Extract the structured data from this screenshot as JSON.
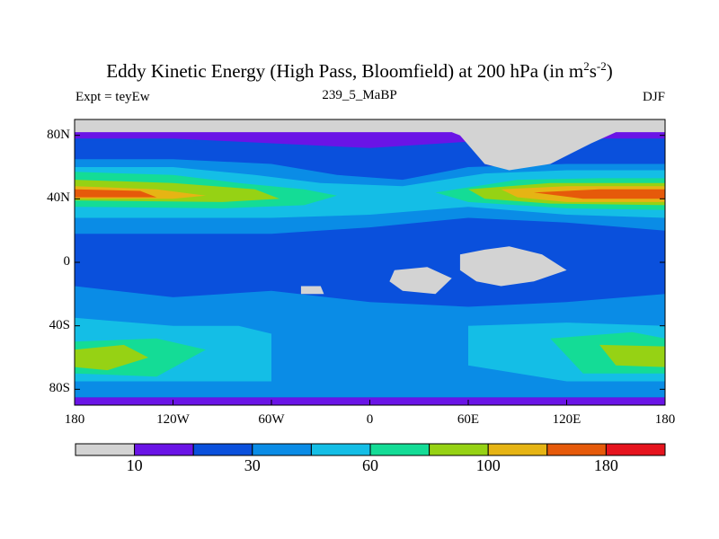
{
  "title_main": "Eddy Kinetic Energy (High Pass, Bloomfield) at 200 hPa (in m",
  "title_sup1": "2",
  "title_mid": "s",
  "title_sup2": "-2",
  "title_end": ")",
  "left_label": "Expt = teyEw",
  "center_label": "239_5_MaBP",
  "right_label": "DJF",
  "chart_data": {
    "type": "heatmap",
    "variable": "Eddy Kinetic Energy (High Pass, Bloomfield)",
    "level": "200 hPa",
    "units": "m^2 s^-2",
    "season": "DJF",
    "x_range": [
      -180,
      180
    ],
    "y_range": [
      -90,
      90
    ],
    "x_ticks": [
      {
        "value": -180,
        "label": "180"
      },
      {
        "value": -120,
        "label": "120W"
      },
      {
        "value": -60,
        "label": "60W"
      },
      {
        "value": 0,
        "label": "0"
      },
      {
        "value": 60,
        "label": "60E"
      },
      {
        "value": 120,
        "label": "120E"
      },
      {
        "value": 180,
        "label": "180"
      }
    ],
    "y_ticks": [
      {
        "value": 80,
        "label": "80N"
      },
      {
        "value": 40,
        "label": "40N"
      },
      {
        "value": 0,
        "label": "0"
      },
      {
        "value": -40,
        "label": "40S"
      },
      {
        "value": -80,
        "label": "80S"
      }
    ],
    "colorbar": {
      "colors": [
        "#d3d3d3",
        "#6a14e6",
        "#0a50dc",
        "#0a8ce6",
        "#14bee6",
        "#14dc96",
        "#96d214",
        "#e6b414",
        "#e65a0a",
        "#e6141e"
      ],
      "labels": [
        {
          "boundary": 1,
          "label": "10"
        },
        {
          "boundary": 3,
          "label": "30"
        },
        {
          "boundary": 5,
          "label": "60"
        },
        {
          "boundary": 7,
          "label": "100"
        },
        {
          "boundary": 9,
          "label": "180"
        }
      ]
    },
    "regions": [
      {
        "level": 2,
        "points": [
          [
            -180,
            78
          ],
          [
            -120,
            78
          ],
          [
            -60,
            75
          ],
          [
            0,
            72
          ],
          [
            60,
            76
          ],
          [
            120,
            78
          ],
          [
            180,
            78
          ],
          [
            180,
            -85
          ],
          [
            -180,
            -85
          ]
        ]
      },
      {
        "level": 3,
        "points": [
          [
            -180,
            65
          ],
          [
            -120,
            65
          ],
          [
            -60,
            62
          ],
          [
            -20,
            55
          ],
          [
            20,
            52
          ],
          [
            60,
            60
          ],
          [
            120,
            62
          ],
          [
            180,
            62
          ],
          [
            180,
            20
          ],
          [
            120,
            25
          ],
          [
            60,
            28
          ],
          [
            0,
            22
          ],
          [
            -60,
            18
          ],
          [
            -120,
            18
          ],
          [
            -180,
            18
          ]
        ]
      },
      {
        "level": 3,
        "points": [
          [
            -180,
            -15
          ],
          [
            -120,
            -22
          ],
          [
            -60,
            -18
          ],
          [
            0,
            -25
          ],
          [
            60,
            -28
          ],
          [
            120,
            -25
          ],
          [
            180,
            -20
          ],
          [
            180,
            -85
          ],
          [
            -180,
            -85
          ]
        ]
      },
      {
        "level": 4,
        "points": [
          [
            -180,
            60
          ],
          [
            -120,
            60
          ],
          [
            -70,
            55
          ],
          [
            -30,
            50
          ],
          [
            20,
            48
          ],
          [
            70,
            56
          ],
          [
            120,
            58
          ],
          [
            180,
            58
          ],
          [
            180,
            28
          ],
          [
            120,
            30
          ],
          [
            60,
            35
          ],
          [
            0,
            30
          ],
          [
            -60,
            28
          ],
          [
            -120,
            28
          ],
          [
            -180,
            28
          ]
        ]
      },
      {
        "level": 4,
        "points": [
          [
            -180,
            -35
          ],
          [
            -120,
            -40
          ],
          [
            -80,
            -40
          ],
          [
            -60,
            -45
          ],
          [
            -60,
            -75
          ],
          [
            -180,
            -75
          ]
        ]
      },
      {
        "level": 4,
        "points": [
          [
            60,
            -40
          ],
          [
            120,
            -38
          ],
          [
            180,
            -40
          ],
          [
            180,
            -75
          ],
          [
            120,
            -75
          ],
          [
            60,
            -65
          ]
        ]
      },
      {
        "level": 5,
        "points": [
          [
            -180,
            57
          ],
          [
            -120,
            55
          ],
          [
            -80,
            50
          ],
          [
            -40,
            46
          ],
          [
            -20,
            42
          ],
          [
            -40,
            36
          ],
          [
            -90,
            34
          ],
          [
            -180,
            35
          ]
        ]
      },
      {
        "level": 5,
        "points": [
          [
            40,
            44
          ],
          [
            90,
            52
          ],
          [
            140,
            53
          ],
          [
            180,
            53
          ],
          [
            180,
            33
          ],
          [
            120,
            34
          ],
          [
            60,
            38
          ]
        ]
      },
      {
        "level": 5,
        "points": [
          [
            -180,
            -50
          ],
          [
            -130,
            -48
          ],
          [
            -100,
            -55
          ],
          [
            -130,
            -72
          ],
          [
            -180,
            -70
          ]
        ]
      },
      {
        "level": 5,
        "points": [
          [
            110,
            -48
          ],
          [
            160,
            -44
          ],
          [
            180,
            -48
          ],
          [
            180,
            -70
          ],
          [
            130,
            -70
          ]
        ]
      },
      {
        "level": 6,
        "points": [
          [
            -180,
            52
          ],
          [
            -120,
            50
          ],
          [
            -70,
            46
          ],
          [
            -55,
            40
          ],
          [
            -90,
            38
          ],
          [
            -180,
            39
          ]
        ]
      },
      {
        "level": 6,
        "points": [
          [
            60,
            46
          ],
          [
            110,
            50
          ],
          [
            180,
            50
          ],
          [
            180,
            36
          ],
          [
            110,
            37
          ],
          [
            70,
            40
          ]
        ]
      },
      {
        "level": 6,
        "points": [
          [
            -180,
            -55
          ],
          [
            -150,
            -52
          ],
          [
            -135,
            -60
          ],
          [
            -160,
            -68
          ],
          [
            -180,
            -66
          ]
        ]
      },
      {
        "level": 6,
        "points": [
          [
            140,
            -52
          ],
          [
            180,
            -53
          ],
          [
            180,
            -66
          ],
          [
            150,
            -65
          ]
        ]
      },
      {
        "level": 7,
        "points": [
          [
            -180,
            48
          ],
          [
            -130,
            46
          ],
          [
            -100,
            42
          ],
          [
            -120,
            40
          ],
          [
            -180,
            40
          ]
        ]
      },
      {
        "level": 7,
        "points": [
          [
            80,
            46
          ],
          [
            120,
            48
          ],
          [
            180,
            48
          ],
          [
            180,
            38
          ],
          [
            120,
            38
          ],
          [
            90,
            41
          ]
        ]
      },
      {
        "level": 8,
        "points": [
          [
            -180,
            46
          ],
          [
            -140,
            45
          ],
          [
            -130,
            41
          ],
          [
            -180,
            41
          ]
        ]
      },
      {
        "level": 8,
        "points": [
          [
            100,
            44
          ],
          [
            140,
            46
          ],
          [
            180,
            46
          ],
          [
            180,
            40
          ],
          [
            130,
            40
          ]
        ]
      },
      {
        "level": 0,
        "points": [
          [
            -180,
            90
          ],
          [
            180,
            90
          ],
          [
            180,
            82
          ],
          [
            150,
            82
          ],
          [
            135,
            75
          ],
          [
            110,
            62
          ],
          [
            85,
            58
          ],
          [
            70,
            62
          ],
          [
            55,
            80
          ],
          [
            50,
            82
          ],
          [
            -180,
            82
          ]
        ]
      },
      {
        "level": 0,
        "points": [
          [
            55,
            5
          ],
          [
            70,
            8
          ],
          [
            85,
            10
          ],
          [
            105,
            5
          ],
          [
            120,
            -5
          ],
          [
            100,
            -12
          ],
          [
            80,
            -15
          ],
          [
            65,
            -12
          ],
          [
            55,
            -5
          ]
        ]
      },
      {
        "level": 0,
        "points": [
          [
            15,
            -5
          ],
          [
            35,
            -3
          ],
          [
            50,
            -10
          ],
          [
            40,
            -20
          ],
          [
            20,
            -18
          ],
          [
            12,
            -12
          ]
        ]
      },
      {
        "level": 0,
        "points": [
          [
            -42,
            -15
          ],
          [
            -30,
            -15
          ],
          [
            -28,
            -20
          ],
          [
            -42,
            -20
          ]
        ]
      }
    ]
  }
}
